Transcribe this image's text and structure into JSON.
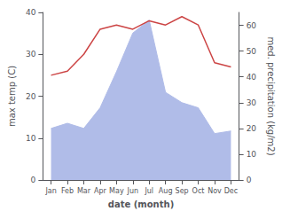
{
  "chart_data": {
    "type": "line",
    "categories": [
      "Jan",
      "Feb",
      "Mar",
      "Apr",
      "May",
      "Jun",
      "Jul",
      "Aug",
      "Sep",
      "Oct",
      "Nov",
      "Dec"
    ],
    "xlabel": "date (month)",
    "ylabel": "max temp (C)",
    "y2label": "med. precipitation (kg/m2)",
    "series": [
      {
        "type": "line",
        "color": "#cc4444",
        "values": [
          25,
          26,
          30,
          36,
          37,
          36,
          38,
          37,
          39,
          37,
          28,
          27
        ]
      },
      {
        "type": "area",
        "axis": "y2",
        "color": "#b0bce8",
        "values": [
          20,
          22,
          20,
          28,
          42,
          57,
          62,
          34,
          30,
          28,
          18,
          19
        ]
      }
    ],
    "ylim": [
      0,
      40
    ],
    "yticks": [
      0,
      10,
      20,
      30,
      40
    ],
    "y2lim": [
      0,
      65
    ],
    "y2ticks": [
      0,
      10,
      20,
      30,
      40,
      50,
      60
    ],
    "grid": false
  }
}
